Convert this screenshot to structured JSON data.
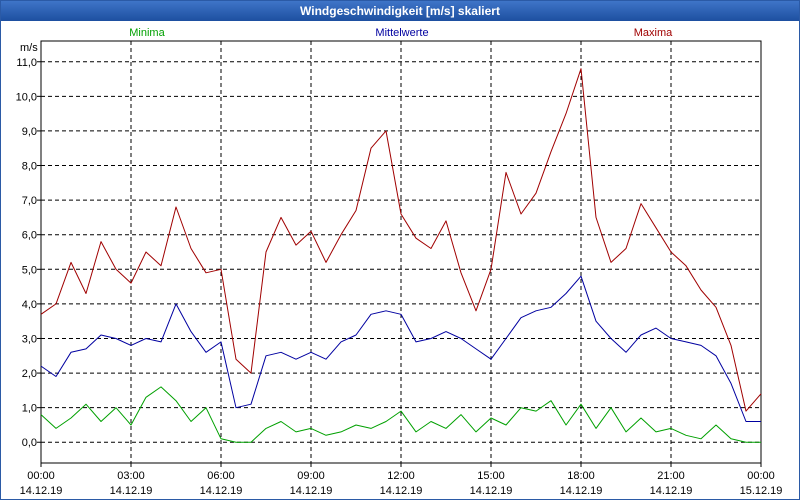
{
  "window": {
    "title": "Windgeschwindigkeit [m/s] skaliert"
  },
  "chart_data": {
    "type": "line",
    "title": "Windgeschwindigkeit [m/s] skaliert",
    "ylabel": "m/s",
    "xlabel": "",
    "ylim": [
      -0.6,
      11.6
    ],
    "y_ticks": [
      0,
      1,
      2,
      3,
      4,
      5,
      6,
      7,
      8,
      9,
      10,
      11
    ],
    "y_tick_labels": [
      "0,0",
      "1,0",
      "2,0",
      "3,0",
      "4,0",
      "5,0",
      "6,0",
      "7,0",
      "8,0",
      "9,0",
      "10,0",
      "11,0"
    ],
    "x_ticks": [
      {
        "time": "00:00",
        "date": "14.12.19"
      },
      {
        "time": "03:00",
        "date": "14.12.19"
      },
      {
        "time": "06:00",
        "date": "14.12.19"
      },
      {
        "time": "09:00",
        "date": "14.12.19"
      },
      {
        "time": "12:00",
        "date": "14.12.19"
      },
      {
        "time": "15:00",
        "date": "14.12.19"
      },
      {
        "time": "18:00",
        "date": "14.12.19"
      },
      {
        "time": "21:00",
        "date": "14.12.19"
      },
      {
        "time": "00:00",
        "date": "15.12.19"
      }
    ],
    "x_range_hours": [
      0,
      24
    ],
    "grid": true,
    "legend_position": "top",
    "series": [
      {
        "name": "Minima",
        "color": "#00a000",
        "x": [
          0,
          0.5,
          1,
          1.5,
          2,
          2.5,
          3,
          3.5,
          4,
          4.5,
          5,
          5.5,
          6,
          6.5,
          7,
          7.5,
          8,
          8.5,
          9,
          9.5,
          10,
          10.5,
          11,
          11.5,
          12,
          12.5,
          13,
          13.5,
          14,
          14.5,
          15,
          15.5,
          16,
          16.5,
          17,
          17.5,
          18,
          18.5,
          19,
          19.5,
          20,
          20.5,
          21,
          21.5,
          22,
          22.5,
          23,
          23.5,
          24
        ],
        "values": [
          0.8,
          0.4,
          0.7,
          1.1,
          0.6,
          1.0,
          0.5,
          1.3,
          1.6,
          1.2,
          0.6,
          1.0,
          0.1,
          0.0,
          0.0,
          0.4,
          0.6,
          0.3,
          0.4,
          0.2,
          0.3,
          0.5,
          0.4,
          0.6,
          0.9,
          0.3,
          0.6,
          0.4,
          0.8,
          0.3,
          0.7,
          0.5,
          1.0,
          0.9,
          1.2,
          0.5,
          1.1,
          0.4,
          1.0,
          0.3,
          0.7,
          0.3,
          0.4,
          0.2,
          0.1,
          0.5,
          0.1,
          0.0,
          0.0
        ]
      },
      {
        "name": "Mittelwerte",
        "color": "#0000a0",
        "x": [
          0,
          0.5,
          1,
          1.5,
          2,
          2.5,
          3,
          3.5,
          4,
          4.5,
          5,
          5.5,
          6,
          6.5,
          7,
          7.5,
          8,
          8.5,
          9,
          9.5,
          10,
          10.5,
          11,
          11.5,
          12,
          12.5,
          13,
          13.5,
          14,
          14.5,
          15,
          15.5,
          16,
          16.5,
          17,
          17.5,
          18,
          18.5,
          19,
          19.5,
          20,
          20.5,
          21,
          21.5,
          22,
          22.5,
          23,
          23.5,
          24
        ],
        "values": [
          2.2,
          1.9,
          2.6,
          2.7,
          3.1,
          3.0,
          2.8,
          3.0,
          2.9,
          4.0,
          3.2,
          2.6,
          2.9,
          1.0,
          1.1,
          2.5,
          2.6,
          2.4,
          2.6,
          2.4,
          2.9,
          3.1,
          3.7,
          3.8,
          3.7,
          2.9,
          3.0,
          3.2,
          3.0,
          2.7,
          2.4,
          3.0,
          3.6,
          3.8,
          3.9,
          4.3,
          4.8,
          3.5,
          3.0,
          2.6,
          3.1,
          3.3,
          3.0,
          2.9,
          2.8,
          2.5,
          1.7,
          0.6,
          0.6
        ]
      },
      {
        "name": "Maxima",
        "color": "#a00000",
        "x": [
          0,
          0.5,
          1,
          1.5,
          2,
          2.5,
          3,
          3.5,
          4,
          4.5,
          5,
          5.5,
          6,
          6.5,
          7,
          7.5,
          8,
          8.5,
          9,
          9.5,
          10,
          10.5,
          11,
          11.5,
          12,
          12.5,
          13,
          13.5,
          14,
          14.5,
          15,
          15.5,
          16,
          16.5,
          17,
          17.5,
          18,
          18.5,
          19,
          19.5,
          20,
          20.5,
          21,
          21.5,
          22,
          22.5,
          23,
          23.5,
          24
        ],
        "values": [
          3.7,
          4.0,
          5.2,
          4.3,
          5.8,
          5.0,
          4.6,
          5.5,
          5.1,
          6.8,
          5.6,
          4.9,
          5.0,
          2.4,
          2.0,
          5.5,
          6.5,
          5.7,
          6.1,
          5.2,
          6.0,
          6.7,
          8.5,
          9.0,
          6.6,
          5.9,
          5.6,
          6.4,
          4.9,
          3.8,
          5.0,
          7.8,
          6.6,
          7.2,
          8.4,
          9.5,
          10.8,
          6.5,
          5.2,
          5.6,
          6.9,
          6.2,
          5.5,
          5.1,
          4.4,
          3.9,
          2.8,
          0.9,
          1.4
        ]
      }
    ]
  }
}
